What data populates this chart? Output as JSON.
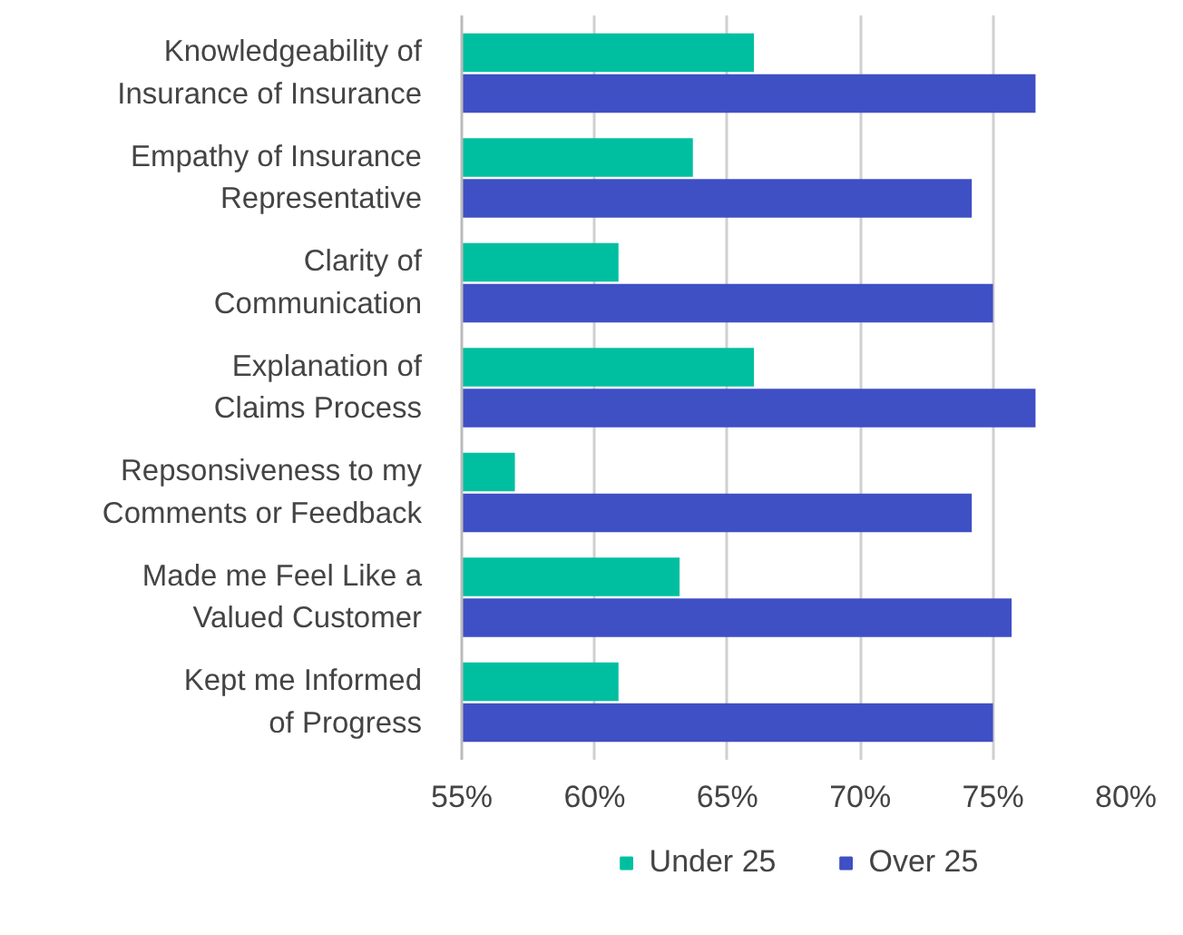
{
  "chart_data": {
    "type": "bar",
    "orientation": "horizontal",
    "categories": [
      "Knowledgeability of\nInsurance of Insurance",
      "Empathy of Insurance\nRepresentative",
      "Clarity of\nCommunication",
      "Explanation of\nClaims Process",
      "Repsonsiveness to my\nComments or Feedback",
      "Made me Feel Like a\nValued Customer",
      "Kept me Informed\nof Progress"
    ],
    "series": [
      {
        "name": "Under 25",
        "color": "#00bfa0",
        "values": [
          66.0,
          63.7,
          60.9,
          66.0,
          57.0,
          63.2,
          60.9
        ]
      },
      {
        "name": "Over 25",
        "color": "#3f4fc4",
        "values": [
          76.6,
          74.2,
          75.0,
          76.6,
          74.2,
          75.7,
          75.0
        ]
      }
    ],
    "xlim": [
      55,
      80
    ],
    "xticks": [
      {
        "value": 55,
        "label": "55%"
      },
      {
        "value": 60,
        "label": "60%"
      },
      {
        "value": 65,
        "label": "65%"
      },
      {
        "value": 70,
        "label": "70%"
      },
      {
        "value": 75,
        "label": "75%"
      },
      {
        "value": 80,
        "label": "80%"
      }
    ],
    "grid": "x",
    "legend": "bottom"
  }
}
